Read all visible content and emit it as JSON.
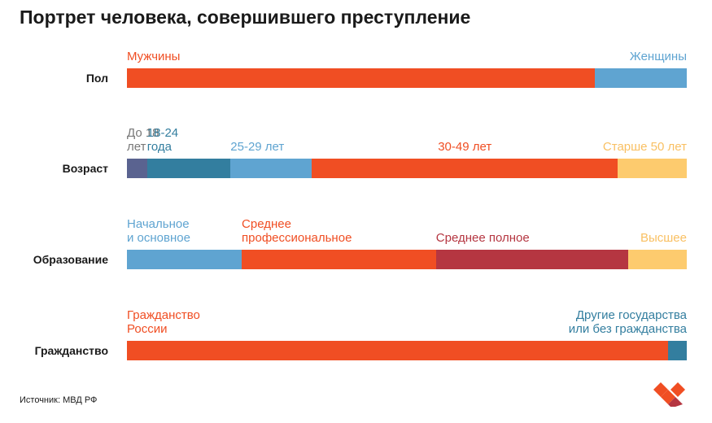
{
  "title": "Портрет человека, совершившего преступление",
  "source": "Источник: МВД РФ",
  "logo": {
    "icon": "heart-logo-icon",
    "colors": [
      "#F04E23",
      "#B53641"
    ]
  },
  "chart_data": {
    "type": "bar",
    "orientation": "horizontal",
    "stacked": true,
    "units": "percent of total",
    "title": "Портрет человека, совершившего преступление",
    "rows": [
      {
        "label": "Пол",
        "segments": [
          {
            "label": "Мужчины",
            "value": 83.6,
            "color": "#F04E23",
            "text_color": "#F04E23"
          },
          {
            "label": "Женщины",
            "value": 16.4,
            "color": "#5FA4D1",
            "text_color": "#5FA4D1"
          }
        ]
      },
      {
        "label": "Возраст",
        "segments": [
          {
            "label": "До 18\nлет",
            "value": 3.6,
            "color": "#5A6390",
            "text_color": "#777777"
          },
          {
            "label": "18-24\nгода",
            "value": 14.9,
            "color": "#337E9F",
            "text_color": "#337E9F"
          },
          {
            "label": "25-29 лет",
            "value": 14.5,
            "color": "#5FA4D1",
            "text_color": "#5FA4D1"
          },
          {
            "label": "30-49 лет",
            "value": 54.7,
            "color": "#F04E23",
            "text_color": "#F04E23"
          },
          {
            "label": "Старше 50 лет",
            "value": 12.3,
            "color": "#FDCB6E",
            "text_color": "#F9C063"
          }
        ]
      },
      {
        "label": "Образование",
        "segments": [
          {
            "label": "Начальное\nи основное",
            "value": 20.5,
            "color": "#5FA4D1",
            "text_color": "#5FA4D1"
          },
          {
            "label": "Среднее\nпрофессиональное",
            "value": 34.7,
            "color": "#F04E23",
            "text_color": "#F04E23"
          },
          {
            "label": "Среднее полное",
            "value": 34.4,
            "color": "#B53641",
            "text_color": "#B53641"
          },
          {
            "label": "Высшее",
            "value": 10.4,
            "color": "#FDCB6E",
            "text_color": "#F9C063"
          }
        ]
      },
      {
        "label": "Гражданство",
        "segments": [
          {
            "label": "Гражданство\nРоссии",
            "value": 96.7,
            "color": "#F04E23",
            "text_color": "#F04E23"
          },
          {
            "label": "Другие государства\nили без гражданства",
            "value": 3.3,
            "color": "#337E9F",
            "text_color": "#337E9F"
          }
        ]
      }
    ]
  }
}
